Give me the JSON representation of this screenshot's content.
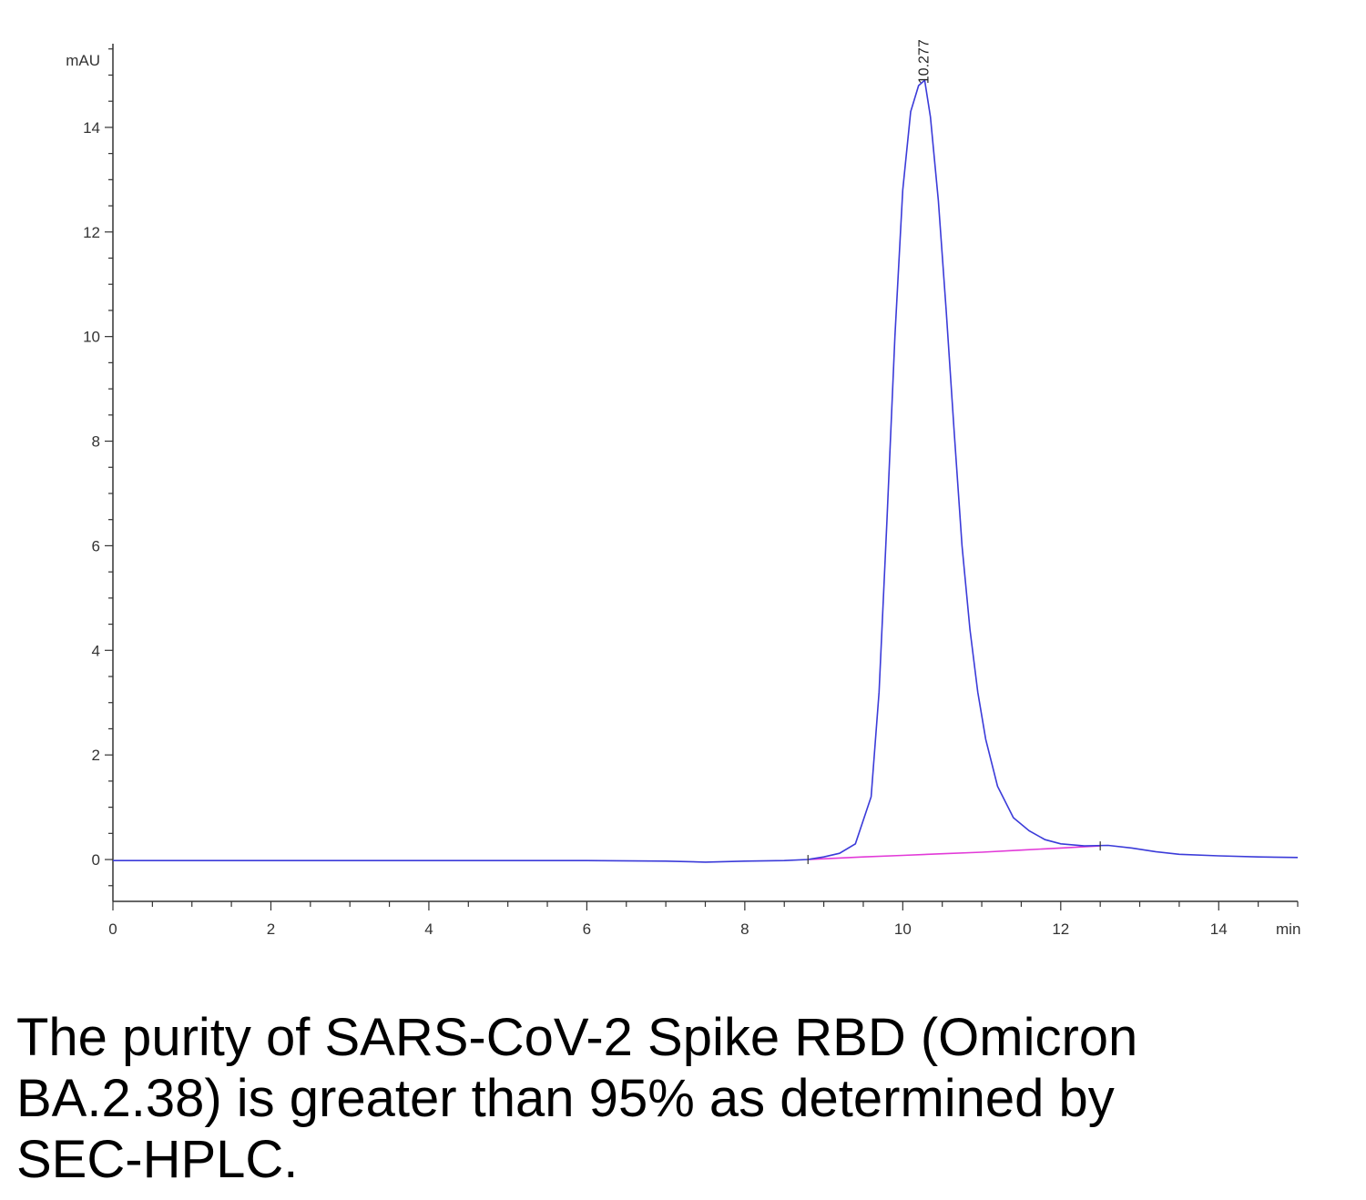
{
  "caption": "The purity of SARS-CoV-2 Spike RBD (Omicron BA.2.38) is greater than 95% as determined by SEC-HPLC.",
  "chart_data": {
    "type": "line",
    "title": "",
    "ylabel": "mAU",
    "xlabel": "min",
    "xlim": [
      0,
      15
    ],
    "ylim": [
      -0.8,
      15.6
    ],
    "x_ticks": [
      0,
      2,
      4,
      6,
      8,
      10,
      12,
      14
    ],
    "y_ticks": [
      0,
      2,
      4,
      6,
      8,
      10,
      12,
      14
    ],
    "grid": false,
    "peak_label": "10.277",
    "colors": {
      "trace": "#3b3bd9",
      "baseline": "#e23ad8",
      "axis": "#333333"
    },
    "series": [
      {
        "x": [
          0,
          1,
          2,
          3,
          4,
          5,
          6,
          7,
          7.5,
          8,
          8.5,
          8.8,
          9.0,
          9.2,
          9.4,
          9.6,
          9.7,
          9.8,
          9.9,
          10.0,
          10.1,
          10.2,
          10.277,
          10.35,
          10.45,
          10.55,
          10.65,
          10.75,
          10.85,
          10.95,
          11.05,
          11.2,
          11.4,
          11.6,
          11.8,
          12.0,
          12.3,
          12.6,
          12.9,
          13.2,
          13.5,
          14.0,
          14.5,
          15.0
        ],
        "y": [
          -0.02,
          -0.02,
          -0.02,
          -0.02,
          -0.02,
          -0.02,
          -0.02,
          -0.03,
          -0.05,
          -0.03,
          -0.02,
          0.0,
          0.05,
          0.12,
          0.3,
          1.2,
          3.2,
          6.5,
          10.0,
          12.8,
          14.3,
          14.8,
          14.9,
          14.2,
          12.6,
          10.5,
          8.2,
          6.0,
          4.4,
          3.2,
          2.3,
          1.4,
          0.8,
          0.55,
          0.38,
          0.3,
          0.26,
          0.27,
          0.22,
          0.15,
          0.1,
          0.07,
          0.05,
          0.04
        ]
      },
      {
        "x": [
          8.8,
          9.5,
          10.0,
          10.5,
          11.0,
          11.5,
          12.0,
          12.5
        ],
        "y": [
          0.0,
          0.05,
          0.08,
          0.11,
          0.14,
          0.18,
          0.22,
          0.26
        ]
      }
    ]
  }
}
